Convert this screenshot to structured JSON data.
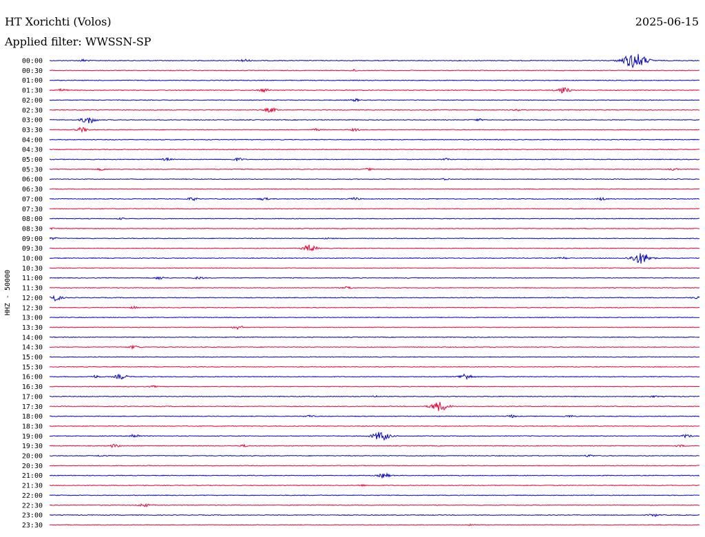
{
  "header": {
    "station": "HT Xorichti (Volos)",
    "date": "2025-06-15",
    "filter": "Applied filter: WWSSN-SP"
  },
  "chart_data": {
    "type": "line",
    "title": "HT Xorichti (Volos)",
    "ylabel": "HHZ - 50000",
    "xlabel": "",
    "colors": {
      "even_hour": "#0000cc",
      "half_hour": "#ee0033"
    },
    "rows": [
      {
        "label": "00:00",
        "events": [
          [
            0.053,
            0.5
          ],
          [
            0.9,
            3
          ],
          [
            0.3,
            0.6
          ]
        ]
      },
      {
        "label": "00:30",
        "events": [
          [
            0.47,
            0.4
          ]
        ]
      },
      {
        "label": "01:00",
        "events": []
      },
      {
        "label": "01:30",
        "events": [
          [
            0.02,
            0.5
          ],
          [
            0.33,
            0.7
          ],
          [
            0.79,
            1.2
          ]
        ]
      },
      {
        "label": "02:00",
        "events": [
          [
            0.47,
            0.5
          ]
        ]
      },
      {
        "label": "02:30",
        "events": [
          [
            0.34,
            0.9
          ],
          [
            0.72,
            0.3
          ]
        ]
      },
      {
        "label": "03:00",
        "events": [
          [
            0.06,
            1.4
          ],
          [
            0.66,
            0.4
          ]
        ]
      },
      {
        "label": "03:30",
        "events": [
          [
            0.05,
            0.9
          ],
          [
            0.41,
            0.4
          ],
          [
            0.47,
            0.5
          ]
        ]
      },
      {
        "label": "04:00",
        "events": []
      },
      {
        "label": "04:30",
        "events": []
      },
      {
        "label": "05:00",
        "events": [
          [
            0.18,
            0.5
          ],
          [
            0.29,
            0.6
          ],
          [
            0.61,
            0.4
          ]
        ]
      },
      {
        "label": "05:30",
        "events": [
          [
            0.08,
            0.4
          ],
          [
            0.49,
            0.4
          ],
          [
            0.96,
            0.4
          ]
        ]
      },
      {
        "label": "06:00",
        "events": [
          [
            0.61,
            0.3
          ]
        ]
      },
      {
        "label": "06:30",
        "events": []
      },
      {
        "label": "07:00",
        "events": [
          [
            0.22,
            0.6
          ],
          [
            0.33,
            0.5
          ],
          [
            0.47,
            0.5
          ],
          [
            0.85,
            0.5
          ]
        ]
      },
      {
        "label": "07:30",
        "events": []
      },
      {
        "label": "08:00",
        "events": [
          [
            0.11,
            0.3
          ]
        ]
      },
      {
        "label": "08:30",
        "events": [
          [
            0.005,
            0.4
          ]
        ]
      },
      {
        "label": "09:00",
        "events": [
          [
            0.005,
            0.4
          ],
          [
            0.43,
            0.3
          ]
        ]
      },
      {
        "label": "09:30",
        "events": [
          [
            0.4,
            1.3
          ]
        ]
      },
      {
        "label": "10:00",
        "events": [
          [
            0.79,
            0.4
          ],
          [
            0.91,
            2.2
          ]
        ]
      },
      {
        "label": "10:30",
        "events": []
      },
      {
        "label": "11:00",
        "events": [
          [
            0.17,
            0.6
          ],
          [
            0.23,
            0.5
          ]
        ]
      },
      {
        "label": "11:30",
        "events": [
          [
            0.46,
            0.5
          ]
        ]
      },
      {
        "label": "12:00",
        "events": [
          [
            0.005,
            1.5
          ],
          [
            0.995,
            0.5
          ]
        ]
      },
      {
        "label": "12:30",
        "events": [
          [
            0.13,
            0.4
          ]
        ]
      },
      {
        "label": "13:00",
        "events": []
      },
      {
        "label": "13:30",
        "events": [
          [
            0.29,
            0.7
          ]
        ]
      },
      {
        "label": "14:00",
        "events": []
      },
      {
        "label": "14:30",
        "events": [
          [
            0.13,
            0.6
          ]
        ]
      },
      {
        "label": "15:00",
        "events": []
      },
      {
        "label": "15:30",
        "events": []
      },
      {
        "label": "16:00",
        "events": [
          [
            0.07,
            0.5
          ],
          [
            0.11,
            1.0
          ],
          [
            0.64,
            1.2
          ]
        ]
      },
      {
        "label": "16:30",
        "events": [
          [
            0.16,
            0.3
          ]
        ]
      },
      {
        "label": "17:00",
        "events": [
          [
            0.5,
            0.3
          ],
          [
            0.93,
            0.3
          ]
        ]
      },
      {
        "label": "17:30",
        "events": [
          [
            0.6,
            1.9
          ]
        ]
      },
      {
        "label": "18:00",
        "events": [
          [
            0.4,
            0.4
          ],
          [
            0.71,
            0.5
          ],
          [
            0.8,
            0.4
          ]
        ]
      },
      {
        "label": "18:30",
        "events": []
      },
      {
        "label": "19:00",
        "events": [
          [
            0.13,
            0.8
          ],
          [
            0.51,
            1.8
          ],
          [
            0.98,
            0.6
          ]
        ]
      },
      {
        "label": "19:30",
        "events": [
          [
            0.1,
            0.6
          ],
          [
            0.3,
            0.4
          ],
          [
            0.97,
            0.4
          ]
        ]
      },
      {
        "label": "20:00",
        "events": [
          [
            0.08,
            0.3
          ],
          [
            0.83,
            0.4
          ]
        ]
      },
      {
        "label": "20:30",
        "events": []
      },
      {
        "label": "21:00",
        "events": [
          [
            0.515,
            0.9
          ]
        ]
      },
      {
        "label": "21:30",
        "events": [
          [
            0.48,
            0.3
          ]
        ]
      },
      {
        "label": "22:00",
        "events": []
      },
      {
        "label": "22:30",
        "events": [
          [
            0.145,
            0.7
          ]
        ]
      },
      {
        "label": "23:00",
        "events": [
          [
            0.93,
            0.5
          ]
        ]
      },
      {
        "label": "23:30",
        "events": [
          [
            0.65,
            0.3
          ]
        ]
      }
    ]
  }
}
